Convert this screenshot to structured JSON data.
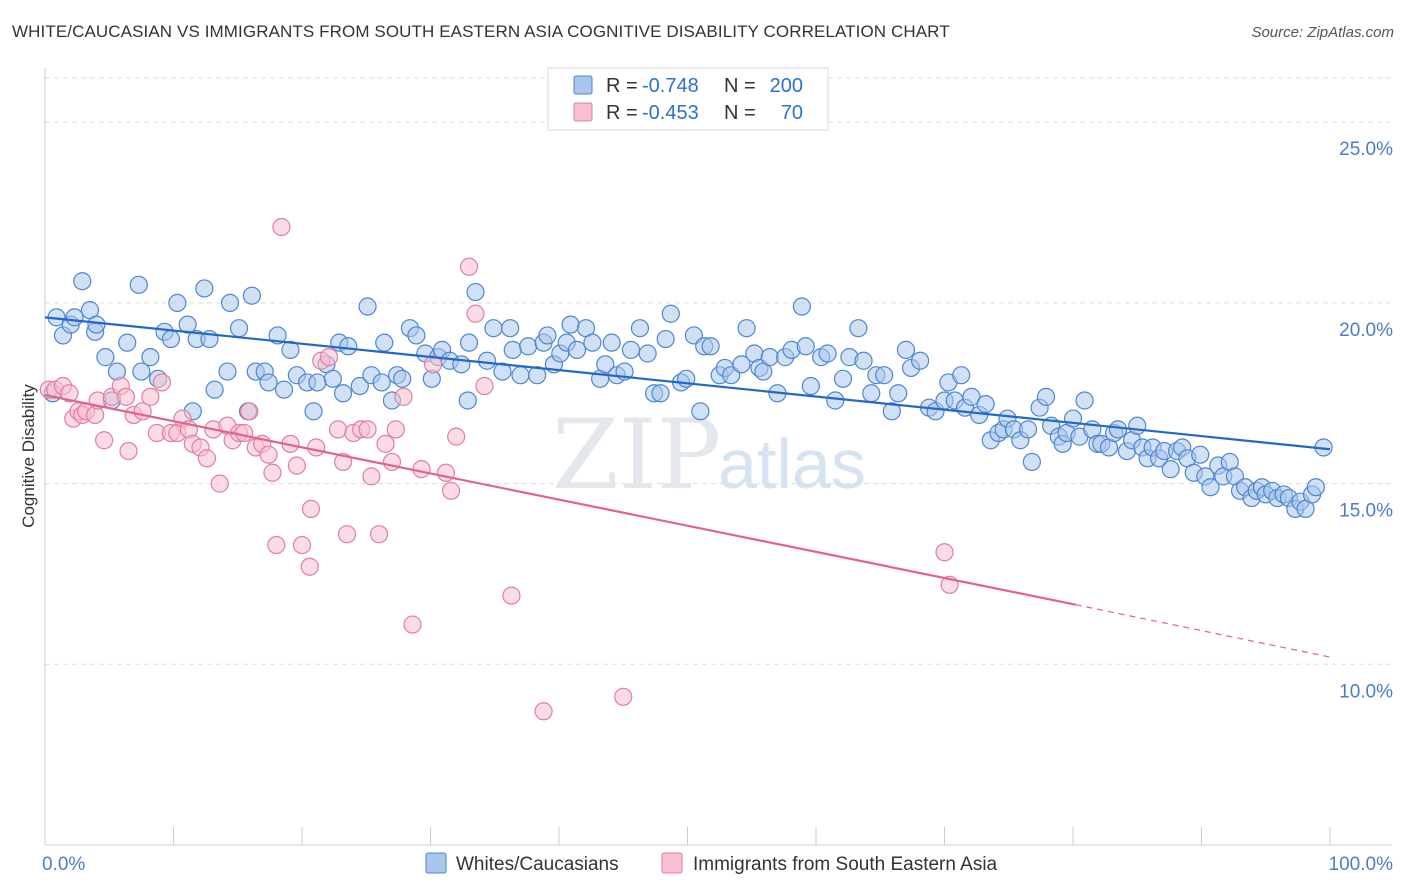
{
  "title": "WHITE/CAUCASIAN VS IMMIGRANTS FROM SOUTH EASTERN ASIA COGNITIVE DISABILITY CORRELATION CHART",
  "source": "Source: ZipAtlas.com",
  "watermark": {
    "zip": "ZIP",
    "atlas": "atlas"
  },
  "colors": {
    "blue_fill": "#a9c6ec",
    "blue_stroke": "#4f86d1",
    "blue_line": "#2368c8",
    "pink_fill": "#f7bfd0",
    "pink_stroke": "#e07f9f",
    "pink_line": "#e0628d",
    "grid": "#dddddd",
    "tick_text": "#4a7cc7"
  },
  "legend_stats": [
    {
      "r_label": "R = ",
      "r_value": "-0.748",
      "n_label": "N = ",
      "n_value": "200"
    },
    {
      "r_label": "R = ",
      "r_value": "-0.453",
      "n_label": "N = ",
      "n_value": "70"
    }
  ],
  "chart_data": {
    "type": "scatter",
    "ylabel": "Cognitive Disability",
    "xlim": [
      0,
      100
    ],
    "ylim": [
      5.0,
      26.5
    ],
    "x_tick_labels": [
      "0.0%",
      "100.0%"
    ],
    "y_ticks": [
      {
        "value": 10,
        "label": "10.0%"
      },
      {
        "value": 15,
        "label": "15.0%"
      },
      {
        "value": 20,
        "label": "20.0%"
      },
      {
        "value": 25,
        "label": "25.0%"
      }
    ],
    "grid": true,
    "legend_position": "bottom",
    "series": [
      {
        "name": "Whites/Caucasians",
        "trend": {
          "x0": 0,
          "y0": 19.6,
          "x1": 100,
          "y1": 15.95,
          "dashed_from": null
        },
        "points": [
          [
            0.6,
            17.5
          ],
          [
            0.9,
            19.6
          ],
          [
            1.4,
            19.1
          ],
          [
            2,
            19.4
          ],
          [
            2.3,
            19.6
          ],
          [
            2.9,
            20.6
          ],
          [
            3.5,
            19.8
          ],
          [
            3.9,
            19.2
          ],
          [
            4,
            19.4
          ],
          [
            4.7,
            18.5
          ],
          [
            5.2,
            17.3
          ],
          [
            5.6,
            18.1
          ],
          [
            6.4,
            18.9
          ],
          [
            7.3,
            20.5
          ],
          [
            7.5,
            18.1
          ],
          [
            8.2,
            18.5
          ],
          [
            8.8,
            17.9
          ],
          [
            9.3,
            19.2
          ],
          [
            9.8,
            19
          ],
          [
            10.3,
            20
          ],
          [
            11.1,
            19.4
          ],
          [
            11.5,
            17.0
          ],
          [
            11.8,
            19
          ],
          [
            12.4,
            20.4
          ],
          [
            12.8,
            19
          ],
          [
            13.2,
            17.6
          ],
          [
            14.2,
            18.1
          ],
          [
            14.4,
            20
          ],
          [
            15.1,
            19.3
          ],
          [
            15.8,
            17
          ],
          [
            16.1,
            20.2
          ],
          [
            16.4,
            18.1
          ],
          [
            17.1,
            18.1
          ],
          [
            17.4,
            17.8
          ],
          [
            18.1,
            19.1
          ],
          [
            18.6,
            17.6
          ],
          [
            19.1,
            18.7
          ],
          [
            19.6,
            18
          ],
          [
            20.4,
            17.8
          ],
          [
            20.9,
            17.0
          ],
          [
            21.2,
            17.8
          ],
          [
            21.9,
            18.3
          ],
          [
            22.4,
            17.9
          ],
          [
            22.9,
            18.9
          ],
          [
            23.2,
            17.5
          ],
          [
            23.6,
            18.8
          ],
          [
            24.5,
            17.7
          ],
          [
            25.1,
            19.9
          ],
          [
            25.4,
            18.0
          ],
          [
            26.2,
            17.8
          ],
          [
            26.4,
            18.9
          ],
          [
            27.0,
            17.3
          ],
          [
            27.4,
            18.0
          ],
          [
            27.8,
            17.9
          ],
          [
            28.4,
            19.3
          ],
          [
            28.9,
            19.1
          ],
          [
            29.6,
            18.6
          ],
          [
            30.1,
            17.9
          ],
          [
            30.6,
            18.5
          ],
          [
            30.9,
            18.7
          ],
          [
            31.5,
            18.4
          ],
          [
            32.4,
            18.3
          ],
          [
            32.9,
            17.3
          ],
          [
            33.0,
            18.9
          ],
          [
            33.5,
            20.3
          ],
          [
            34.4,
            18.4
          ],
          [
            34.9,
            19.3
          ],
          [
            35.6,
            18.1
          ],
          [
            36.2,
            19.3
          ],
          [
            36.4,
            18.7
          ],
          [
            37.0,
            18.0
          ],
          [
            37.6,
            18.8
          ],
          [
            38.3,
            18.0
          ],
          [
            38.8,
            18.9
          ],
          [
            39.1,
            19.1
          ],
          [
            39.6,
            18.3
          ],
          [
            40.1,
            18.6
          ],
          [
            40.6,
            18.9
          ],
          [
            40.9,
            19.4
          ],
          [
            41.4,
            18.7
          ],
          [
            42.1,
            19.3
          ],
          [
            42.6,
            18.9
          ],
          [
            43.2,
            17.9
          ],
          [
            43.6,
            18.3
          ],
          [
            44.1,
            18.9
          ],
          [
            44.5,
            18.0
          ],
          [
            45.1,
            18.1
          ],
          [
            45.6,
            18.7
          ],
          [
            46.3,
            19.3
          ],
          [
            46.9,
            18.6
          ],
          [
            47.4,
            17.5
          ],
          [
            47.9,
            17.5
          ],
          [
            48.3,
            19.0
          ],
          [
            48.7,
            19.7
          ],
          [
            49.5,
            17.8
          ],
          [
            49.9,
            17.9
          ],
          [
            50.5,
            19.1
          ],
          [
            51.0,
            17.0
          ],
          [
            51.3,
            18.8
          ],
          [
            51.8,
            18.8
          ],
          [
            52.5,
            18.0
          ],
          [
            52.9,
            18.2
          ],
          [
            53.4,
            18.0
          ],
          [
            54.2,
            18.3
          ],
          [
            54.6,
            19.3
          ],
          [
            55.2,
            18.6
          ],
          [
            55.6,
            18.2
          ],
          [
            55.9,
            18.1
          ],
          [
            56.4,
            18.5
          ],
          [
            57.0,
            17.5
          ],
          [
            57.6,
            18.5
          ],
          [
            58.1,
            18.7
          ],
          [
            58.9,
            19.9
          ],
          [
            59.2,
            18.8
          ],
          [
            59.6,
            17.7
          ],
          [
            60.4,
            18.5
          ],
          [
            60.9,
            18.6
          ],
          [
            61.5,
            17.3
          ],
          [
            62.1,
            17.9
          ],
          [
            62.6,
            18.5
          ],
          [
            63.3,
            19.3
          ],
          [
            63.7,
            18.4
          ],
          [
            64.3,
            17.5
          ],
          [
            64.7,
            18.0
          ],
          [
            65.3,
            18.0
          ],
          [
            65.9,
            17.0
          ],
          [
            66.4,
            17.5
          ],
          [
            67.0,
            18.7
          ],
          [
            67.4,
            18.2
          ],
          [
            68.1,
            18.4
          ],
          [
            68.8,
            17.1
          ],
          [
            69.3,
            17.0
          ],
          [
            70.0,
            17.3
          ],
          [
            70.3,
            17.8
          ],
          [
            70.8,
            17.3
          ],
          [
            71.3,
            18.0
          ],
          [
            71.6,
            17.1
          ],
          [
            72.1,
            17.4
          ],
          [
            72.7,
            16.9
          ],
          [
            73.2,
            17.2
          ],
          [
            73.6,
            16.2
          ],
          [
            74.2,
            16.4
          ],
          [
            74.6,
            16.5
          ],
          [
            74.9,
            16.8
          ],
          [
            75.4,
            16.5
          ],
          [
            75.9,
            16.2
          ],
          [
            76.5,
            16.5
          ],
          [
            76.8,
            15.6
          ],
          [
            77.4,
            17.1
          ],
          [
            77.9,
            17.4
          ],
          [
            78.3,
            16.6
          ],
          [
            78.9,
            16.3
          ],
          [
            79.2,
            16.1
          ],
          [
            79.5,
            16.4
          ],
          [
            80.0,
            16.8
          ],
          [
            80.5,
            16.3
          ],
          [
            80.9,
            17.3
          ],
          [
            81.5,
            16.5
          ],
          [
            81.9,
            16.1
          ],
          [
            82.2,
            16.1
          ],
          [
            82.8,
            16.0
          ],
          [
            83.2,
            16.4
          ],
          [
            83.5,
            16.5
          ],
          [
            84.2,
            15.9
          ],
          [
            84.6,
            16.2
          ],
          [
            85.0,
            16.6
          ],
          [
            85.4,
            16.0
          ],
          [
            85.8,
            15.7
          ],
          [
            86.2,
            16.0
          ],
          [
            86.7,
            15.7
          ],
          [
            87.1,
            15.9
          ],
          [
            87.6,
            15.4
          ],
          [
            88.1,
            15.9
          ],
          [
            88.5,
            16.0
          ],
          [
            88.9,
            15.7
          ],
          [
            89.4,
            15.3
          ],
          [
            89.9,
            15.8
          ],
          [
            90.3,
            15.2
          ],
          [
            90.7,
            14.9
          ],
          [
            91.3,
            15.5
          ],
          [
            91.7,
            15.2
          ],
          [
            92.2,
            15.6
          ],
          [
            92.6,
            15.2
          ],
          [
            93.0,
            14.8
          ],
          [
            93.4,
            14.9
          ],
          [
            93.9,
            14.6
          ],
          [
            94.3,
            14.8
          ],
          [
            94.7,
            14.9
          ],
          [
            95.0,
            14.7
          ],
          [
            95.5,
            14.8
          ],
          [
            95.9,
            14.6
          ],
          [
            96.4,
            14.7
          ],
          [
            96.8,
            14.6
          ],
          [
            97.3,
            14.3
          ],
          [
            97.7,
            14.5
          ],
          [
            98.1,
            14.3
          ],
          [
            98.6,
            14.7
          ],
          [
            98.9,
            14.9
          ],
          [
            99.5,
            16.0
          ]
        ]
      },
      {
        "name": "Immigrants from South Eastern Asia",
        "trend": {
          "x0": 0,
          "y0": 17.45,
          "x1": 80.2,
          "y1": 11.65,
          "dashed_from": 80.2,
          "dashed_x1": 100,
          "dashed_y1": 10.2
        },
        "points": [
          [
            0.3,
            17.6
          ],
          [
            0.8,
            17.6
          ],
          [
            1.4,
            17.7
          ],
          [
            1.9,
            17.5
          ],
          [
            2.2,
            16.8
          ],
          [
            2.6,
            17.0
          ],
          [
            2.9,
            16.9
          ],
          [
            3.2,
            17.0
          ],
          [
            3.9,
            16.9
          ],
          [
            4.1,
            17.3
          ],
          [
            4.6,
            16.2
          ],
          [
            5.2,
            17.4
          ],
          [
            5.9,
            17.7
          ],
          [
            6.3,
            17.4
          ],
          [
            6.5,
            15.9
          ],
          [
            6.9,
            16.9
          ],
          [
            7.6,
            17.0
          ],
          [
            8.2,
            17.4
          ],
          [
            8.7,
            16.4
          ],
          [
            9.1,
            17.8
          ],
          [
            9.8,
            16.4
          ],
          [
            10.3,
            16.4
          ],
          [
            10.7,
            16.8
          ],
          [
            11.2,
            16.5
          ],
          [
            11.5,
            16.1
          ],
          [
            12.1,
            16.0
          ],
          [
            12.6,
            15.7
          ],
          [
            13.1,
            16.5
          ],
          [
            13.6,
            15.0
          ],
          [
            14.2,
            16.6
          ],
          [
            14.6,
            16.2
          ],
          [
            15.1,
            16.4
          ],
          [
            15.5,
            16.4
          ],
          [
            15.9,
            17.0
          ],
          [
            16.4,
            16.0
          ],
          [
            16.9,
            16.1
          ],
          [
            17.4,
            15.8
          ],
          [
            17.7,
            15.3
          ],
          [
            18.0,
            13.3
          ],
          [
            18.4,
            22.1
          ],
          [
            19.1,
            16.1
          ],
          [
            19.6,
            15.5
          ],
          [
            20.0,
            13.3
          ],
          [
            20.6,
            12.7
          ],
          [
            20.7,
            14.3
          ],
          [
            21.1,
            16.0
          ],
          [
            21.5,
            18.4
          ],
          [
            22.1,
            18.5
          ],
          [
            22.8,
            16.5
          ],
          [
            23.2,
            15.6
          ],
          [
            23.5,
            13.6
          ],
          [
            24.0,
            16.4
          ],
          [
            24.6,
            16.5
          ],
          [
            25.1,
            16.5
          ],
          [
            25.4,
            15.2
          ],
          [
            26.0,
            13.6
          ],
          [
            26.5,
            16.1
          ],
          [
            27.0,
            15.6
          ],
          [
            27.3,
            16.5
          ],
          [
            27.9,
            17.4
          ],
          [
            28.6,
            11.1
          ],
          [
            29.3,
            15.4
          ],
          [
            30.2,
            18.3
          ],
          [
            31.2,
            15.3
          ],
          [
            31.6,
            14.8
          ],
          [
            32.0,
            16.3
          ],
          [
            33.0,
            21.0
          ],
          [
            33.5,
            19.7
          ],
          [
            34.2,
            17.7
          ],
          [
            36.3,
            11.9
          ],
          [
            38.8,
            8.7
          ],
          [
            45.0,
            9.1
          ],
          [
            70.0,
            13.1
          ],
          [
            70.4,
            12.2
          ]
        ]
      }
    ]
  }
}
